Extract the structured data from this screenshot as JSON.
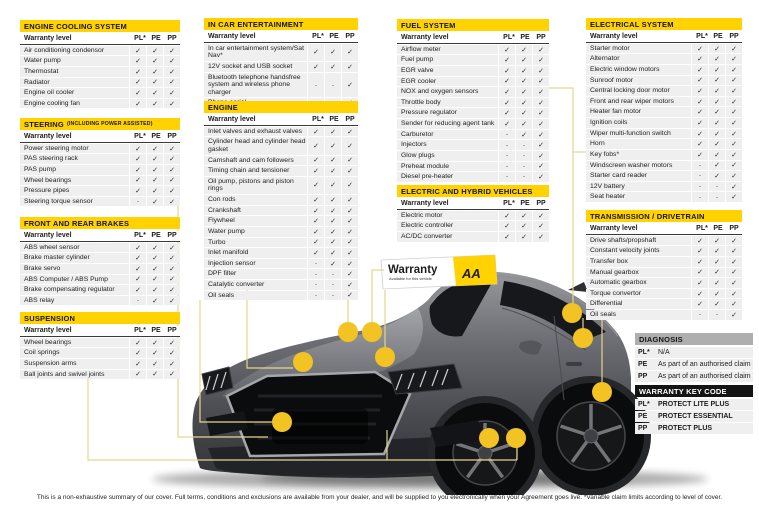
{
  "page": {
    "footer": "This is a non-exhaustive summary of our cover. Full terms, conditions and exclusions are available from your dealer, and will be supplied to you electronically when your Agreement goes live. *Variable claim limits according to level of cover."
  },
  "sign": {
    "title": "Warranty",
    "subtitle": "Available for this vehicle",
    "logo": "AA"
  },
  "colors": {
    "accent_yellow": "#FFD200",
    "dot_yellow": "#F2C322",
    "line_yellow": "#E6D48E",
    "header_gray": "#AEAEAE",
    "header_black": "#141414"
  },
  "marks_header": {
    "label": "Warranty level",
    "cols": [
      "PL*",
      "PE",
      "PP"
    ]
  },
  "tables": [
    {
      "id": "engine-cooling-system",
      "title": "ENGINE COOLING SYSTEM",
      "subtitle": "",
      "rows": [
        [
          "Air conditioning condensor",
          "✓",
          "✓",
          "✓"
        ],
        [
          "Water pump",
          "✓",
          "✓",
          "✓"
        ],
        [
          "Thermostat",
          "✓",
          "✓",
          "✓"
        ],
        [
          "Radiator",
          "✓",
          "✓",
          "✓"
        ],
        [
          "Engine oil cooler",
          "✓",
          "✓",
          "✓"
        ],
        [
          "Engine cooling fan",
          "✓",
          "✓",
          "✓"
        ]
      ]
    },
    {
      "id": "steering",
      "title": "STEERING",
      "subtitle": "(INCLUDING POWER ASSISTED)",
      "rows": [
        [
          "Power steering motor",
          "✓",
          "✓",
          "✓"
        ],
        [
          "PAS steering rack",
          "✓",
          "✓",
          "✓"
        ],
        [
          "PAS pump",
          "✓",
          "✓",
          "✓"
        ],
        [
          "Wheel bearings",
          "✓",
          "✓",
          "✓"
        ],
        [
          "Pressure pipes",
          "✓",
          "✓",
          "✓"
        ],
        [
          "Steering torque sensor",
          "-",
          "✓",
          "✓"
        ]
      ]
    },
    {
      "id": "front-and-rear-brakes",
      "title": "FRONT AND REAR BRAKES",
      "subtitle": "",
      "rows": [
        [
          "ABS wheel sensor",
          "✓",
          "✓",
          "✓"
        ],
        [
          "Brake master cylinder",
          "✓",
          "✓",
          "✓"
        ],
        [
          "Brake servo",
          "✓",
          "✓",
          "✓"
        ],
        [
          "ABS Computer / ABS Pump",
          "✓",
          "✓",
          "✓"
        ],
        [
          "Brake compensating regulator",
          "✓",
          "✓",
          "✓"
        ],
        [
          "ABS relay",
          "-",
          "✓",
          "✓"
        ]
      ]
    },
    {
      "id": "suspension",
      "title": "SUSPENSION",
      "subtitle": "",
      "rows": [
        [
          "Wheel bearings",
          "✓",
          "✓",
          "✓"
        ],
        [
          "Coil springs",
          "✓",
          "✓",
          "✓"
        ],
        [
          "Suspension arms",
          "✓",
          "✓",
          "✓"
        ],
        [
          "Ball joints and swivel joints",
          "✓",
          "✓",
          "✓"
        ]
      ]
    },
    {
      "id": "in-car-entertainment",
      "title": "IN CAR ENTERTAINMENT",
      "subtitle": "",
      "rows": [
        [
          "In car entertainment system/Sat Nav*",
          "✓",
          "✓",
          "✓"
        ],
        [
          "12V socket and USB socket",
          "✓",
          "✓",
          "✓"
        ],
        [
          "Bluetooth telephone handsfree system and wireless phone charger",
          "-",
          "-",
          "✓"
        ],
        [
          "Phone aerial",
          "-",
          "-",
          "✓"
        ]
      ]
    },
    {
      "id": "engine",
      "title": "ENGINE",
      "subtitle": "",
      "rows": [
        [
          "Inlet valves and exhaust valves",
          "✓",
          "✓",
          "✓"
        ],
        [
          "Cylinder head and cylinder head gasket",
          "✓",
          "✓",
          "✓"
        ],
        [
          "Camshaft and cam followers",
          "✓",
          "✓",
          "✓"
        ],
        [
          "Timing chain and tensioner",
          "✓",
          "✓",
          "✓"
        ],
        [
          "Oil pump, pistons and piston rings",
          "✓",
          "✓",
          "✓"
        ],
        [
          "Con rods",
          "✓",
          "✓",
          "✓"
        ],
        [
          "Crankshaft",
          "✓",
          "✓",
          "✓"
        ],
        [
          "Flywheel",
          "✓",
          "✓",
          "✓"
        ],
        [
          "Water pump",
          "✓",
          "✓",
          "✓"
        ],
        [
          "Turbo",
          "✓",
          "✓",
          "✓"
        ],
        [
          "Inlet manifold",
          "✓",
          "✓",
          "✓"
        ],
        [
          "Injection sensor",
          "-",
          "✓",
          "✓"
        ],
        [
          "DPF filter",
          "-",
          "-",
          "✓"
        ],
        [
          "Catalytic converter",
          "-",
          "-",
          "✓"
        ],
        [
          "Oil seals",
          "-",
          "-",
          "✓"
        ]
      ]
    },
    {
      "id": "fuel-system",
      "title": "FUEL SYSTEM",
      "subtitle": "",
      "rows": [
        [
          "Airflow meter",
          "✓",
          "✓",
          "✓"
        ],
        [
          "Fuel pump",
          "✓",
          "✓",
          "✓"
        ],
        [
          "EGR valve",
          "✓",
          "✓",
          "✓"
        ],
        [
          "EGR cooler",
          "✓",
          "✓",
          "✓"
        ],
        [
          "NOX and oxygen sensors",
          "✓",
          "✓",
          "✓"
        ],
        [
          "Throttle body",
          "✓",
          "✓",
          "✓"
        ],
        [
          "Pressure regulator",
          "✓",
          "✓",
          "✓"
        ],
        [
          "Sender for reducing agent tank",
          "✓",
          "✓",
          "✓"
        ],
        [
          "Carburetor",
          "-",
          "✓",
          "✓"
        ],
        [
          "Injectors",
          "-",
          "-",
          "✓"
        ],
        [
          "Glow plugs",
          "-",
          "-",
          "✓"
        ],
        [
          "Preheat module",
          "-",
          "-",
          "✓"
        ],
        [
          "Diesel pre-heater",
          "-",
          "-",
          "✓"
        ]
      ]
    },
    {
      "id": "electric-and-hybrid-vehicles",
      "title": "ELECTRIC AND HYBRID VEHICLES",
      "subtitle": "",
      "rows": [
        [
          "Electric motor",
          "✓",
          "✓",
          "✓"
        ],
        [
          "Electric controller",
          "✓",
          "✓",
          "✓"
        ],
        [
          "AC/DC converter",
          "✓",
          "✓",
          "✓"
        ]
      ]
    },
    {
      "id": "electrical-system",
      "title": "ELECTRICAL SYSTEM",
      "subtitle": "",
      "rows": [
        [
          "Starter motor",
          "✓",
          "✓",
          "✓"
        ],
        [
          "Alternator",
          "✓",
          "✓",
          "✓"
        ],
        [
          "Electric window motors",
          "✓",
          "✓",
          "✓"
        ],
        [
          "Sunroof motor",
          "✓",
          "✓",
          "✓"
        ],
        [
          "Central locking door motor",
          "✓",
          "✓",
          "✓"
        ],
        [
          "Front and rear wiper motors",
          "✓",
          "✓",
          "✓"
        ],
        [
          "Heater fan motor",
          "✓",
          "✓",
          "✓"
        ],
        [
          "Ignition coils",
          "✓",
          "✓",
          "✓"
        ],
        [
          "Wiper multi-function switch",
          "✓",
          "✓",
          "✓"
        ],
        [
          "Horn",
          "✓",
          "✓",
          "✓"
        ],
        [
          "Key fobs*",
          "✓",
          "✓",
          "✓"
        ],
        [
          "Windscreen washer motors",
          "-",
          "✓",
          "✓"
        ],
        [
          "Starter card reader",
          "-",
          "✓",
          "✓"
        ],
        [
          "12V battery",
          "-",
          "-",
          "✓"
        ],
        [
          "Seat heater",
          "-",
          "-",
          "✓"
        ]
      ]
    },
    {
      "id": "transmission-drivetrain",
      "title": "TRANSMISSION / DRIVETRAIN",
      "subtitle": "",
      "rows": [
        [
          "Drive shafts/propshaft",
          "✓",
          "✓",
          "✓"
        ],
        [
          "Constant velocity joints",
          "✓",
          "✓",
          "✓"
        ],
        [
          "Transfer box",
          "✓",
          "✓",
          "✓"
        ],
        [
          "Manual gearbox",
          "✓",
          "✓",
          "✓"
        ],
        [
          "Automatic gearbox",
          "✓",
          "✓",
          "✓"
        ],
        [
          "Torque convertor",
          "✓",
          "✓",
          "✓"
        ],
        [
          "Differential",
          "✓",
          "✓",
          "✓"
        ],
        [
          "Oil seals",
          "-",
          "-",
          "✓"
        ]
      ]
    }
  ],
  "key_tables": [
    {
      "id": "diagnosis",
      "title": "DIAGNOSIS",
      "style": "gray",
      "bold_desc": false,
      "rows": [
        [
          "PL*",
          "N/A"
        ],
        [
          "PE",
          "As part of an authorised claim"
        ],
        [
          "PP",
          "As part of an authorised claim"
        ]
      ]
    },
    {
      "id": "warranty-key-code",
      "title": "WARRANTY KEY CODE",
      "style": "black",
      "bold_desc": true,
      "rows": [
        [
          "PL*",
          "PROTECT LITE PLUS"
        ],
        [
          "PE",
          "PROTECT ESSENTIAL"
        ],
        [
          "PP",
          "PROTECT PLUS"
        ]
      ]
    }
  ]
}
